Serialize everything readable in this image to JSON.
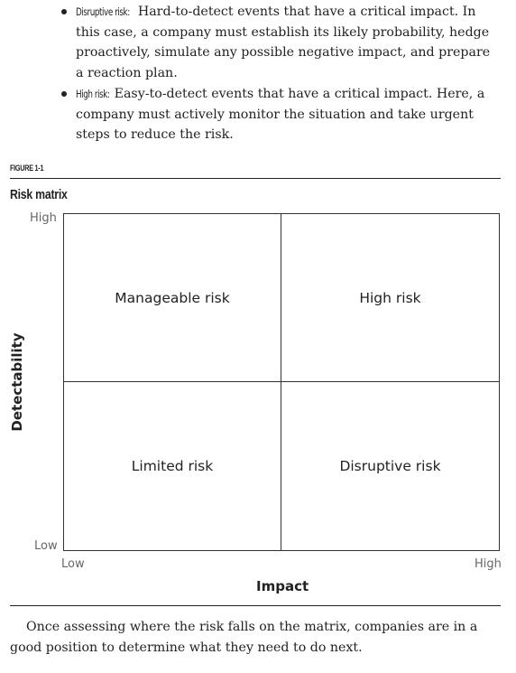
{
  "bullets": [
    {
      "lead": "Disruptive risk:",
      "text": "Hard-to-detect events that have a critical impact. In this case, a company must establish its likely probability, hedge proactively, simulate any possible negative impact, and prepare a reaction plan."
    },
    {
      "lead": "High risk:",
      "text": "Easy-to-detect events that have a critical impact. Here, a company must actively monitor the situation and take urgent steps to reduce the risk."
    }
  ],
  "figure": {
    "label": "FIGURE 1-1",
    "title": "Risk matrix",
    "y_axis": {
      "title": "Detectability",
      "high": "High",
      "low": "Low"
    },
    "x_axis": {
      "title": "Impact",
      "low": "Low",
      "high": "High"
    },
    "quadrants": {
      "top_left": "Manageable risk",
      "top_right": "High risk",
      "bottom_left": "Limited risk",
      "bottom_right": "Disruptive risk"
    }
  },
  "closing_paragraph": "Once assessing where the risk falls on the matrix, companies are in a good position to determine what they need to do next."
}
